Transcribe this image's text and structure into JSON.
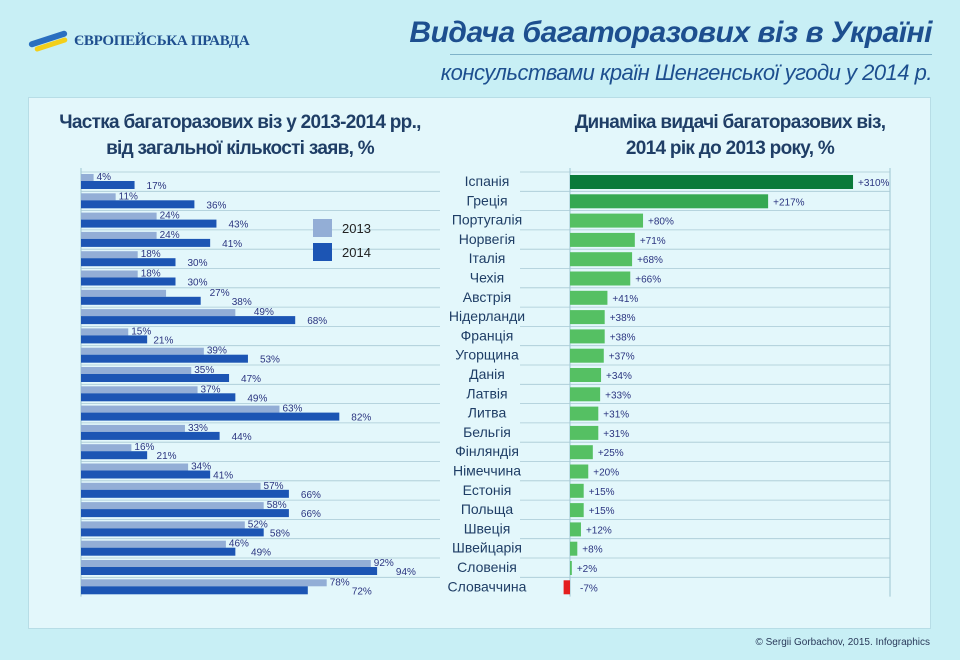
{
  "logo_text": "ЄВРОПЕЙСЬКА ПРАВДА",
  "title": "Видача багаторазових віз в Україні",
  "subtitle": "консульствами країн Шенгенської угоди у 2014 р.",
  "footer": "© Sergii Gorbachov, 2015. Infographics",
  "colors": {
    "y2013": "#93aed6",
    "y2014": "#1c55b4",
    "growth_dark": "#0a7a3a",
    "growth_mid": "#34a852",
    "growth": "#55c063",
    "decline": "#e41e1e",
    "label": "#2b3580"
  },
  "chart_data": [
    {
      "type": "bar",
      "orientation": "horizontal",
      "title": "Частка багаторазових віз у 2013-2014 рр., від загальної кількості заяв, %",
      "title_lines": [
        "Частка багаторазових віз у 2013-2014 рр.,",
        "від загальної кількості заяв, %"
      ],
      "categories": [
        "Іспанія",
        "Греція",
        "Португалія",
        "Норвегія",
        "Італія",
        "Чехія",
        "Австрія",
        "Нідерланди",
        "Франція",
        "Угорщина",
        "Данія",
        "Латвія",
        "Литва",
        "Бельгія",
        "Фінляндія",
        "Німеччина",
        "Естонія",
        "Польща",
        "Швеція",
        "Швейцарія",
        "Словенія",
        "Словаччина"
      ],
      "legend": [
        "2013",
        "2014"
      ],
      "legend_position": "top-right",
      "xlim": [
        0,
        100
      ],
      "series": [
        {
          "name": "2013",
          "values": [
            4,
            11,
            24,
            24,
            18,
            18,
            27,
            49,
            15,
            39,
            35,
            37,
            63,
            33,
            16,
            34,
            57,
            58,
            52,
            46,
            92,
            78
          ]
        },
        {
          "name": "2014",
          "values": [
            17,
            36,
            43,
            41,
            30,
            30,
            38,
            68,
            21,
            53,
            47,
            49,
            82,
            44,
            21,
            41,
            66,
            66,
            58,
            49,
            94,
            72
          ]
        }
      ]
    },
    {
      "type": "bar",
      "orientation": "horizontal",
      "title": "Динаміка видачі багаторазових віз, 2014 рік до 2013 року, %",
      "title_lines": [
        "Динаміка видачі багаторазових віз,",
        "2014 рік до 2013 року, %"
      ],
      "categories": [
        "Іспанія",
        "Греція",
        "Португалія",
        "Норвегія",
        "Італія",
        "Чехія",
        "Австрія",
        "Нідерланди",
        "Франція",
        "Угорщина",
        "Данія",
        "Латвія",
        "Литва",
        "Бельгія",
        "Фінляндія",
        "Німеччина",
        "Естонія",
        "Польща",
        "Швеція",
        "Швейцарія",
        "Словенія",
        "Словаччина"
      ],
      "values": [
        310,
        217,
        80,
        71,
        68,
        66,
        41,
        38,
        38,
        37,
        34,
        33,
        31,
        31,
        25,
        20,
        15,
        15,
        12,
        8,
        2,
        -7
      ],
      "xlim": [
        -10,
        330
      ]
    }
  ]
}
